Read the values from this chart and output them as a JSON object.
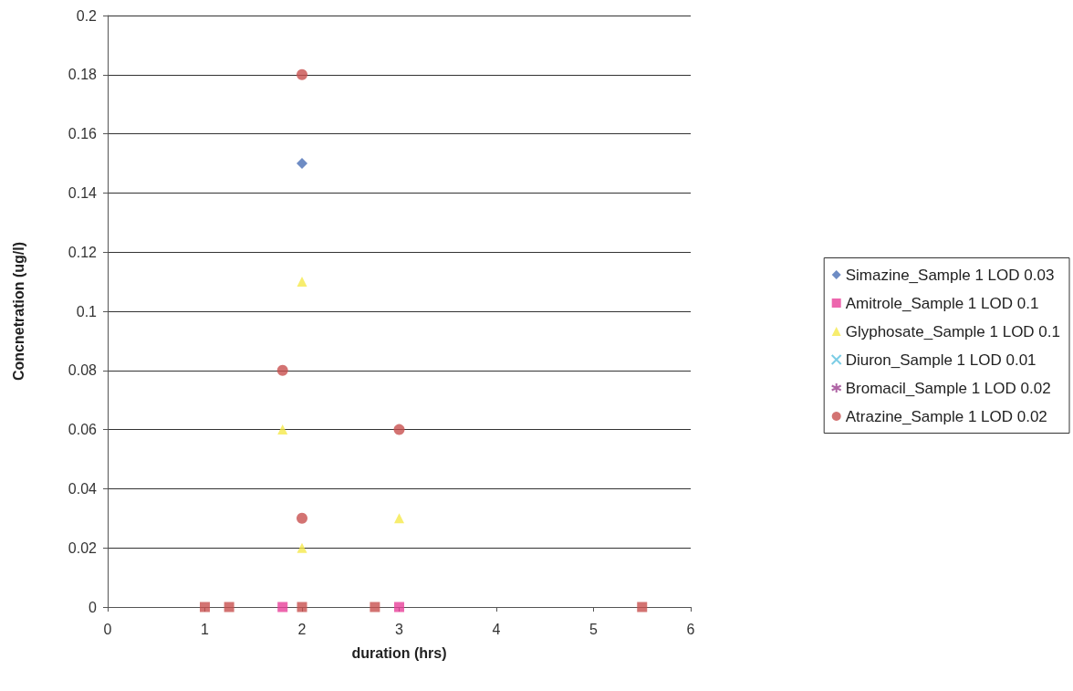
{
  "chart_data": {
    "type": "scatter",
    "xlabel": "duration (hrs)",
    "ylabel": "Concnetration (ug/l)",
    "xlim": [
      0,
      6
    ],
    "xticks": [
      0,
      1,
      2,
      3,
      4,
      5,
      6
    ],
    "ylim": [
      0,
      0.2
    ],
    "yticks": [
      0,
      0.02,
      0.04,
      0.06,
      0.08,
      0.1,
      0.12,
      0.14,
      0.16,
      0.18,
      0.2
    ],
    "grid": "y",
    "legend": "right",
    "series": [
      {
        "name": "Simazine_Sample 1 LOD 0.03",
        "color": "#4a6fb5",
        "marker": "diamond",
        "x": [
          2
        ],
        "values": [
          0.15
        ]
      },
      {
        "name": "Amitrole_Sample 1 LOD 0.1",
        "color": "#e8409a",
        "marker": "square",
        "x": [
          1,
          1.25,
          1.8,
          2,
          2.75,
          3,
          5.5
        ],
        "values": [
          0,
          0,
          0,
          0,
          0,
          0,
          0
        ],
        "colors": [
          "#c8504f",
          "#c8504f",
          "#e8409a",
          "#c8504f",
          "#c8504f",
          "#e8409a",
          "#c8504f"
        ]
      },
      {
        "name": "Glyphosate_Sample 1 LOD 0.1",
        "color": "#f5e84a",
        "marker": "triangle",
        "x": [
          2,
          1.8,
          2,
          3
        ],
        "values": [
          0.11,
          0.06,
          0.02,
          0.03
        ]
      },
      {
        "name": "Diuron_Sample 1 LOD 0.01",
        "color": "#5bc0de",
        "marker": "cross"
      },
      {
        "name": "Bromacil_Sample 1 LOD 0.02",
        "color": "#9b3f8f",
        "marker": "star"
      },
      {
        "name": "Atrazine_Sample 1 LOD 0.02",
        "color": "#c8504f",
        "marker": "circle",
        "x": [
          2,
          1.8,
          3,
          2
        ],
        "values": [
          0.18,
          0.08,
          0.06,
          0.03
        ]
      }
    ]
  }
}
